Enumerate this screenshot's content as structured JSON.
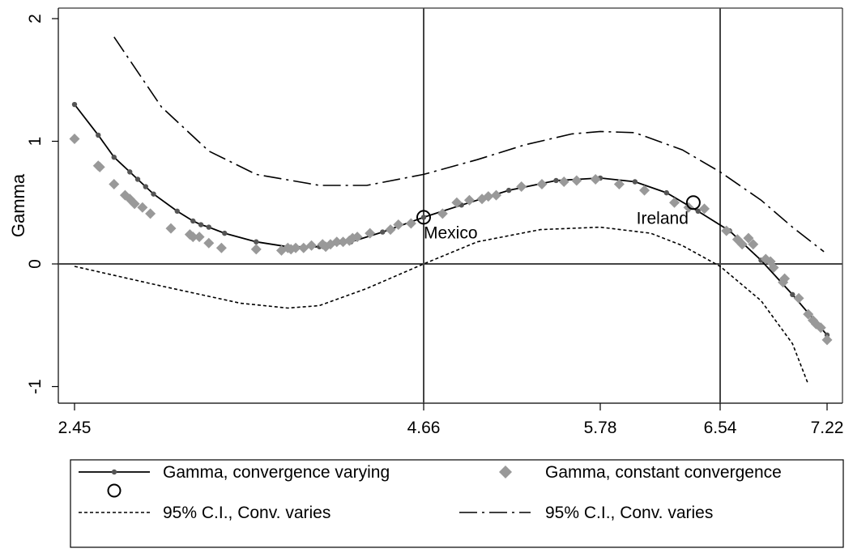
{
  "chart_data": {
    "type": "line",
    "title": "",
    "ylabel": "Gamma",
    "xlabel": "",
    "xlim": [
      2.45,
      7.22
    ],
    "ylim": [
      -1,
      2
    ],
    "x_ticks": [
      2.45,
      4.66,
      5.78,
      6.54,
      7.22
    ],
    "x_tick_labels": [
      "2.45",
      "4.66",
      "5.78",
      "6.54",
      "7.22"
    ],
    "y_ticks": [
      -1,
      0,
      1,
      2
    ],
    "y_tick_labels": [
      "-1",
      "0",
      "1",
      "2"
    ],
    "reference_lines": {
      "vertical": [
        4.66,
        6.54
      ],
      "horizontal": [
        0
      ]
    },
    "grid": false,
    "legend_position": "bottom",
    "series": [
      {
        "name": "Gamma, convergence varying",
        "style": "solid-with-dots",
        "color": "#000000",
        "x": [
          2.45,
          2.6,
          2.7,
          2.8,
          2.85,
          2.9,
          2.95,
          3.1,
          3.2,
          3.25,
          3.3,
          3.4,
          3.6,
          3.8,
          4.0,
          4.2,
          4.4,
          4.66,
          4.9,
          5.2,
          5.5,
          5.78,
          6.0,
          6.2,
          6.4,
          6.6,
          6.8,
          7.0,
          7.22
        ],
        "y": [
          1.3,
          1.05,
          0.87,
          0.75,
          0.69,
          0.63,
          0.57,
          0.43,
          0.35,
          0.32,
          0.3,
          0.25,
          0.18,
          0.14,
          0.14,
          0.18,
          0.26,
          0.38,
          0.48,
          0.6,
          0.68,
          0.7,
          0.67,
          0.58,
          0.43,
          0.27,
          0.03,
          -0.25,
          -0.58
        ]
      },
      {
        "name": "Gamma, constant convergence",
        "style": "diamond-markers",
        "color": "#999999",
        "x": [
          2.45,
          2.6,
          2.61,
          2.7,
          2.77,
          2.8,
          2.83,
          2.88,
          2.93,
          3.06,
          3.18,
          3.2,
          3.24,
          3.3,
          3.38,
          3.6,
          3.76,
          3.8,
          3.82,
          3.85,
          3.9,
          3.95,
          4.02,
          4.04,
          4.07,
          4.11,
          4.15,
          4.19,
          4.21,
          4.24,
          4.32,
          4.45,
          4.5,
          4.58,
          4.78,
          4.87,
          4.95,
          5.03,
          5.07,
          5.12,
          5.28,
          5.41,
          5.55,
          5.63,
          5.75,
          5.9,
          6.06,
          6.25,
          6.34,
          6.44,
          6.58,
          6.65,
          6.68,
          6.72,
          6.75,
          6.83,
          6.86,
          6.88,
          6.94,
          6.95,
          7.04,
          7.1,
          7.13,
          7.15,
          7.18,
          7.22
        ],
        "y": [
          1.02,
          0.8,
          0.79,
          0.65,
          0.56,
          0.53,
          0.49,
          0.46,
          0.41,
          0.29,
          0.24,
          0.22,
          0.22,
          0.17,
          0.13,
          0.12,
          0.11,
          0.13,
          0.12,
          0.13,
          0.13,
          0.15,
          0.16,
          0.14,
          0.16,
          0.18,
          0.18,
          0.19,
          0.21,
          0.22,
          0.25,
          0.28,
          0.32,
          0.33,
          0.41,
          0.5,
          0.52,
          0.53,
          0.55,
          0.56,
          0.63,
          0.65,
          0.67,
          0.68,
          0.69,
          0.65,
          0.6,
          0.5,
          0.46,
          0.45,
          0.27,
          0.2,
          0.16,
          0.21,
          0.16,
          0.04,
          0.02,
          -0.03,
          -0.15,
          -0.12,
          -0.28,
          -0.41,
          -0.46,
          -0.49,
          -0.52,
          -0.62
        ]
      },
      {
        "name": "95% C.I., Conv. varies",
        "style": "dashed",
        "color": "#000000",
        "x": [
          2.45,
          3.0,
          3.5,
          3.8,
          4.0,
          4.3,
          4.66,
          5.0,
          5.4,
          5.78,
          6.1,
          6.3,
          6.54,
          6.8,
          7.0,
          7.1
        ],
        "y": [
          -0.02,
          -0.18,
          -0.32,
          -0.36,
          -0.34,
          -0.2,
          0.0,
          0.18,
          0.28,
          0.3,
          0.25,
          0.15,
          -0.02,
          -0.3,
          -0.65,
          -0.98
        ]
      },
      {
        "name": "95% C.I., Conv. varies",
        "style": "dash-dot",
        "color": "#000000",
        "x": [
          2.7,
          3.0,
          3.3,
          3.6,
          4.0,
          4.3,
          4.66,
          5.0,
          5.3,
          5.6,
          5.78,
          6.0,
          6.3,
          6.54,
          6.8,
          7.0,
          7.2
        ],
        "y": [
          1.85,
          1.28,
          0.92,
          0.73,
          0.64,
          0.64,
          0.73,
          0.85,
          0.97,
          1.06,
          1.08,
          1.07,
          0.93,
          0.75,
          0.52,
          0.3,
          0.1
        ]
      }
    ],
    "annotations": [
      {
        "label": "Mexico",
        "x": 4.66,
        "y": 0.38,
        "marker": "hollow-circle"
      },
      {
        "label": "Ireland",
        "x": 6.37,
        "y": 0.5,
        "marker": "hollow-circle"
      }
    ],
    "legend": {
      "items": [
        {
          "label": "Gamma, convergence varying",
          "style": "solid-with-dots"
        },
        {
          "label": "Gamma, constant convergence",
          "style": "diamond-markers"
        },
        {
          "label": "",
          "style": "hollow-circle"
        },
        {
          "label": "95% C.I., Conv. varies",
          "style": "dashed"
        },
        {
          "label": "95% C.I., Conv. varies",
          "style": "dash-dot"
        }
      ]
    }
  }
}
